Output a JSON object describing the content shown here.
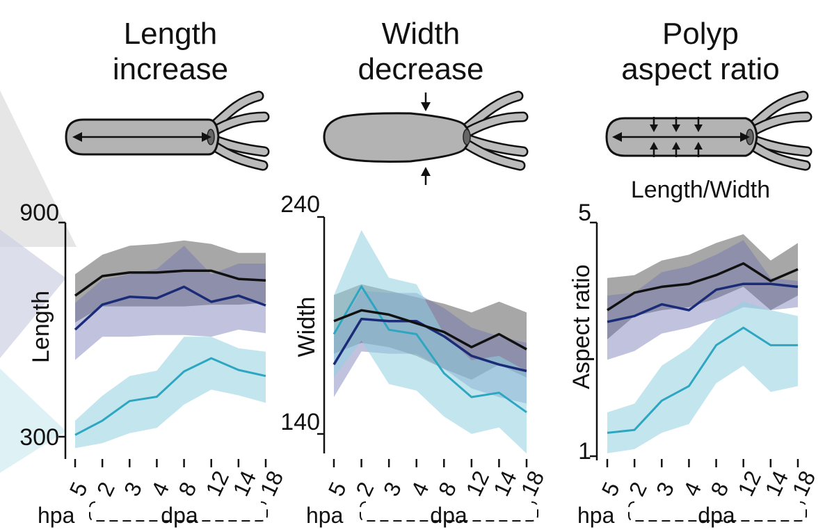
{
  "colors": {
    "uninjured": "#111111",
    "uninjured_band": "#8a8a8a",
    "navy": "#1a2b78",
    "navy_band": "#6c6fb0",
    "cyan": "#2ea6c1",
    "cyan_band": "#8fd0e0",
    "polyp_fill": "#b3b3b3",
    "polyp_outline": "#111111"
  },
  "x_group_labels": {
    "hpa": "hpa",
    "dpa": "dpa"
  },
  "chart_data": [
    {
      "type": "line",
      "title": "Length increase",
      "title_lines": [
        "Length",
        "increase"
      ],
      "diagram_caption": "",
      "xlabel": "",
      "ylabel": "Length",
      "ylim": [
        300,
        900
      ],
      "ylim_labels": [
        "900",
        "300"
      ],
      "x_axis_range": [
        300,
        900
      ],
      "categories": [
        "5",
        "2",
        "3",
        "4",
        "8",
        "12",
        "14",
        "18"
      ],
      "category_units": [
        "hpa",
        "dpa",
        "dpa",
        "dpa",
        "dpa",
        "dpa",
        "dpa",
        "dpa"
      ],
      "series": [
        {
          "name": "black",
          "values": [
            695,
            750,
            760,
            760,
            765,
            765,
            742,
            738
          ],
          "lower": [
            620,
            665,
            665,
            665,
            665,
            670,
            670,
            675
          ],
          "upper": [
            755,
            810,
            835,
            840,
            850,
            840,
            815,
            815
          ]
        },
        {
          "name": "navy",
          "values": [
            600,
            670,
            692,
            688,
            720,
            678,
            695,
            668
          ],
          "lower": [
            515,
            580,
            580,
            585,
            585,
            580,
            600,
            590
          ],
          "upper": [
            675,
            740,
            755,
            770,
            835,
            755,
            785,
            785
          ]
        },
        {
          "name": "cyan",
          "values": [
            305,
            345,
            400,
            412,
            483,
            520,
            487,
            470
          ],
          "lower": [
            268,
            282,
            310,
            325,
            390,
            432,
            416,
            395
          ],
          "upper": [
            345,
            415,
            470,
            485,
            580,
            580,
            548,
            538
          ]
        }
      ]
    },
    {
      "type": "line",
      "title": "Width decrease",
      "title_lines": [
        "Width",
        "decrease"
      ],
      "diagram_caption": "",
      "xlabel": "",
      "ylabel": "Width",
      "ylim": [
        140,
        240
      ],
      "ylim_labels": [
        "240",
        "140"
      ],
      "x_axis_range": [
        140,
        240
      ],
      "categories": [
        "5",
        "2",
        "3",
        "4",
        "8",
        "12",
        "14",
        "18"
      ],
      "category_units": [
        "hpa",
        "dpa",
        "dpa",
        "dpa",
        "dpa",
        "dpa",
        "dpa",
        "dpa"
      ],
      "series": [
        {
          "name": "black",
          "values": [
            192,
            197,
            195,
            191,
            187,
            180,
            186,
            179
          ],
          "lower": [
            177,
            182,
            180,
            176,
            170,
            165,
            172,
            166
          ],
          "upper": [
            204,
            209,
            206,
            203,
            200,
            196,
            201,
            196
          ]
        },
        {
          "name": "navy",
          "values": [
            172,
            193,
            192,
            192,
            185,
            176,
            172,
            169
          ],
          "lower": [
            157,
            178,
            177,
            177,
            170,
            161,
            157,
            154
          ],
          "upper": [
            185,
            206,
            205,
            205,
            198,
            189,
            185,
            182
          ]
        },
        {
          "name": "cyan",
          "values": [
            186,
            208,
            188,
            186,
            168,
            157,
            159,
            150
          ],
          "lower": [
            166,
            183,
            163,
            160,
            148,
            140,
            143,
            131
          ],
          "upper": [
            204,
            234,
            212,
            209,
            186,
            174,
            176,
            169
          ]
        }
      ]
    },
    {
      "type": "line",
      "title": "Polyp aspect ratio",
      "title_lines": [
        "Polyp",
        "aspect ratio"
      ],
      "diagram_caption": "Length/Width",
      "xlabel": "",
      "ylabel": "Aspect ratio",
      "ylim": [
        1,
        5
      ],
      "ylim_labels": [
        "5",
        "1"
      ],
      "x_axis_range": [
        1,
        5
      ],
      "categories": [
        "5",
        "2",
        "3",
        "4",
        "8",
        "12",
        "14",
        "18"
      ],
      "category_units": [
        "hpa",
        "dpa",
        "dpa",
        "dpa",
        "dpa",
        "dpa",
        "dpa",
        "dpa"
      ],
      "series": [
        {
          "name": "black",
          "values": [
            3.5,
            3.8,
            3.9,
            3.95,
            4.1,
            4.3,
            4.0,
            4.2
          ],
          "lower": [
            3.0,
            3.4,
            3.5,
            3.55,
            3.7,
            3.9,
            3.5,
            3.75
          ],
          "upper": [
            4.05,
            4.1,
            4.35,
            4.45,
            4.65,
            4.8,
            4.35,
            4.65
          ]
        },
        {
          "name": "navy",
          "values": [
            3.3,
            3.4,
            3.6,
            3.5,
            3.85,
            3.95,
            3.95,
            3.9
          ],
          "lower": [
            2.65,
            2.8,
            3.1,
            3.2,
            3.35,
            3.55,
            3.5,
            3.55
          ],
          "upper": [
            3.75,
            3.8,
            4.15,
            4.25,
            4.45,
            4.7,
            4.05,
            4.0
          ]
        },
        {
          "name": "cyan",
          "values": [
            1.4,
            1.45,
            1.95,
            2.2,
            2.9,
            3.2,
            2.9,
            2.9
          ],
          "lower": [
            1.05,
            1.12,
            1.4,
            1.55,
            2.25,
            2.55,
            2.1,
            2.2
          ],
          "upper": [
            1.75,
            1.9,
            2.55,
            2.85,
            3.35,
            3.65,
            3.5,
            3.4
          ]
        }
      ]
    }
  ]
}
